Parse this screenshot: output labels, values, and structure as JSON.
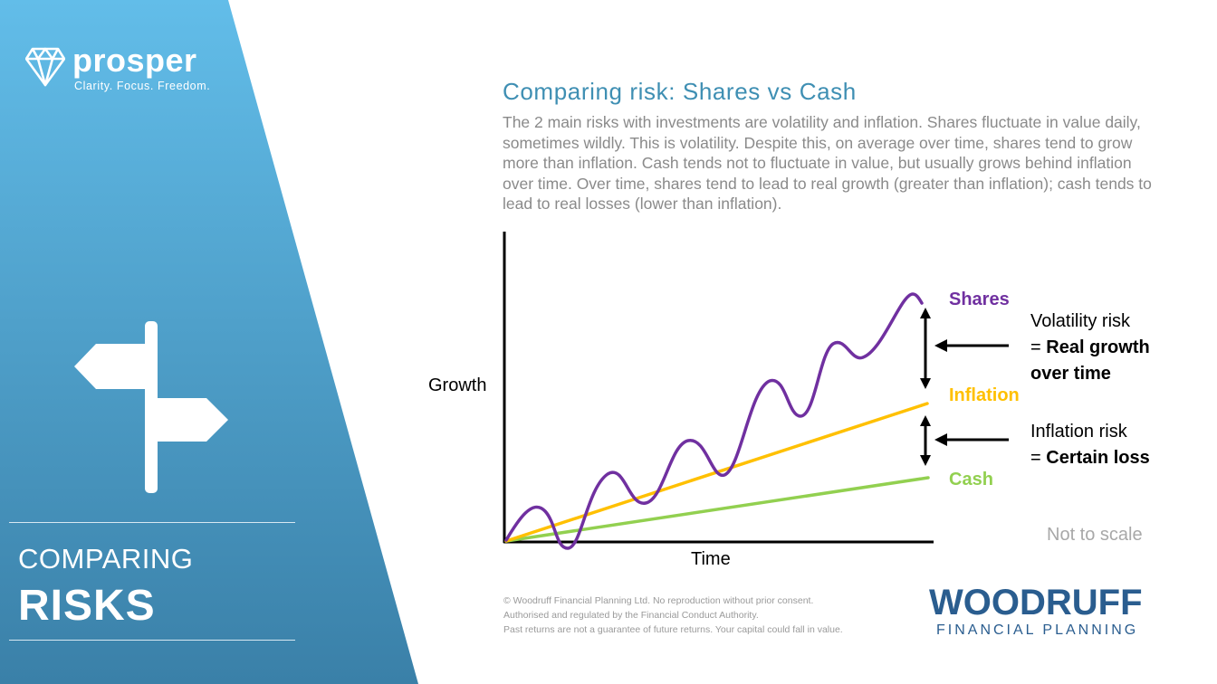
{
  "brand": {
    "name": "prosper",
    "tagline": "Clarity. Focus. Freedom."
  },
  "section": {
    "label_top": "COMPARING",
    "label_big": "RISKS"
  },
  "slide": {
    "title": "Comparing risk: Shares vs Cash",
    "body": "The 2 main risks with investments are volatility and inflation. Shares fluctuate in value daily, sometimes wildly. This is volatility. Despite this, on average over time, shares tend to grow more than inflation. Cash tends not to fluctuate in value, but usually grows behind inflation over time. Over time, shares tend to lead to real growth (greater than inflation); cash tends to lead to real losses (lower than inflation).",
    "note": "Not to scale"
  },
  "chart_data": {
    "type": "line",
    "xlabel": "Time",
    "ylabel": "Growth",
    "series": [
      {
        "name": "Shares",
        "color": "#7030a0"
      },
      {
        "name": "Inflation",
        "color": "#ffc000"
      },
      {
        "name": "Cash",
        "color": "#92d050"
      }
    ],
    "annotations": {
      "volatility": {
        "line1": "Volatility risk",
        "prefix": "= ",
        "bold1": "Real growth",
        "bold2": "over time"
      },
      "inflation": {
        "line1": "Inflation risk",
        "prefix": "= ",
        "bold1": "Certain loss"
      }
    }
  },
  "footer": {
    "line1": "© Woodruff Financial Planning Ltd. No reproduction without prior consent.",
    "line2": "Authorised and regulated by the Financial Conduct Authority.",
    "line3": "Past returns are not a guarantee of future returns. Your capital could fall in value."
  },
  "company": {
    "name": "WOODRUFF",
    "sub": "FINANCIAL PLANNING"
  },
  "colors": {
    "panel_top": "#62bde9",
    "panel_bottom": "#3a80a8",
    "title": "#3f8fb3",
    "company": "#2a5d8f"
  },
  "icons": [
    "diamond-logo-icon",
    "signpost-icon",
    "arrow-left-icon",
    "double-arrow-icon"
  ]
}
